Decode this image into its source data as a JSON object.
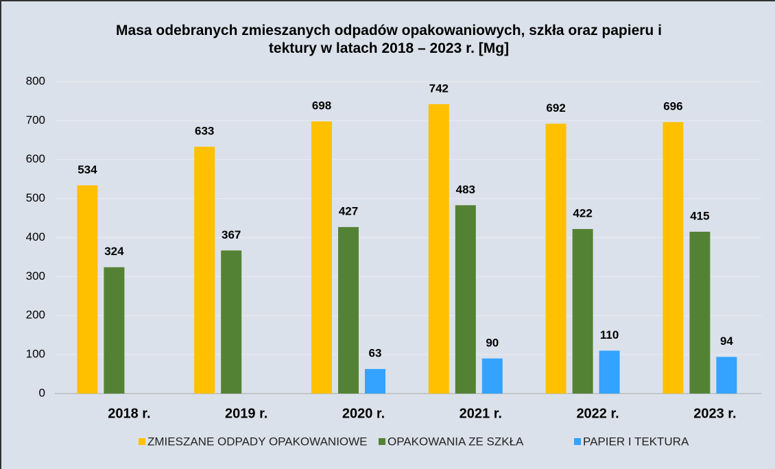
{
  "chart_data": {
    "type": "bar",
    "title": "Masa odebranych zmieszanych odpadów opakowaniowych, szkła oraz papieru i tektury w latach 2018 – 2023 r. [Mg]",
    "categories": [
      "2018 r.",
      "2019 r.",
      "2020 r.",
      "2021 r.",
      "2022 r.",
      "2023 r."
    ],
    "series": [
      {
        "name": "ZMIESZANE ODPADY OPAKOWANIOWE",
        "color": "#ffc000",
        "values": [
          534,
          633,
          698,
          742,
          692,
          696
        ]
      },
      {
        "name": "OPAKOWANIA ZE SZKŁA",
        "color": "#548235",
        "values": [
          324,
          367,
          427,
          483,
          422,
          415
        ]
      },
      {
        "name": "PAPIER I TEKTURA",
        "color": "#33a3ff",
        "values": [
          null,
          null,
          63,
          90,
          110,
          94
        ]
      }
    ],
    "ylim": [
      0,
      800
    ],
    "yticks": [
      0,
      100,
      200,
      300,
      400,
      500,
      600,
      700,
      800
    ],
    "grid": true,
    "legend": "bottom"
  }
}
